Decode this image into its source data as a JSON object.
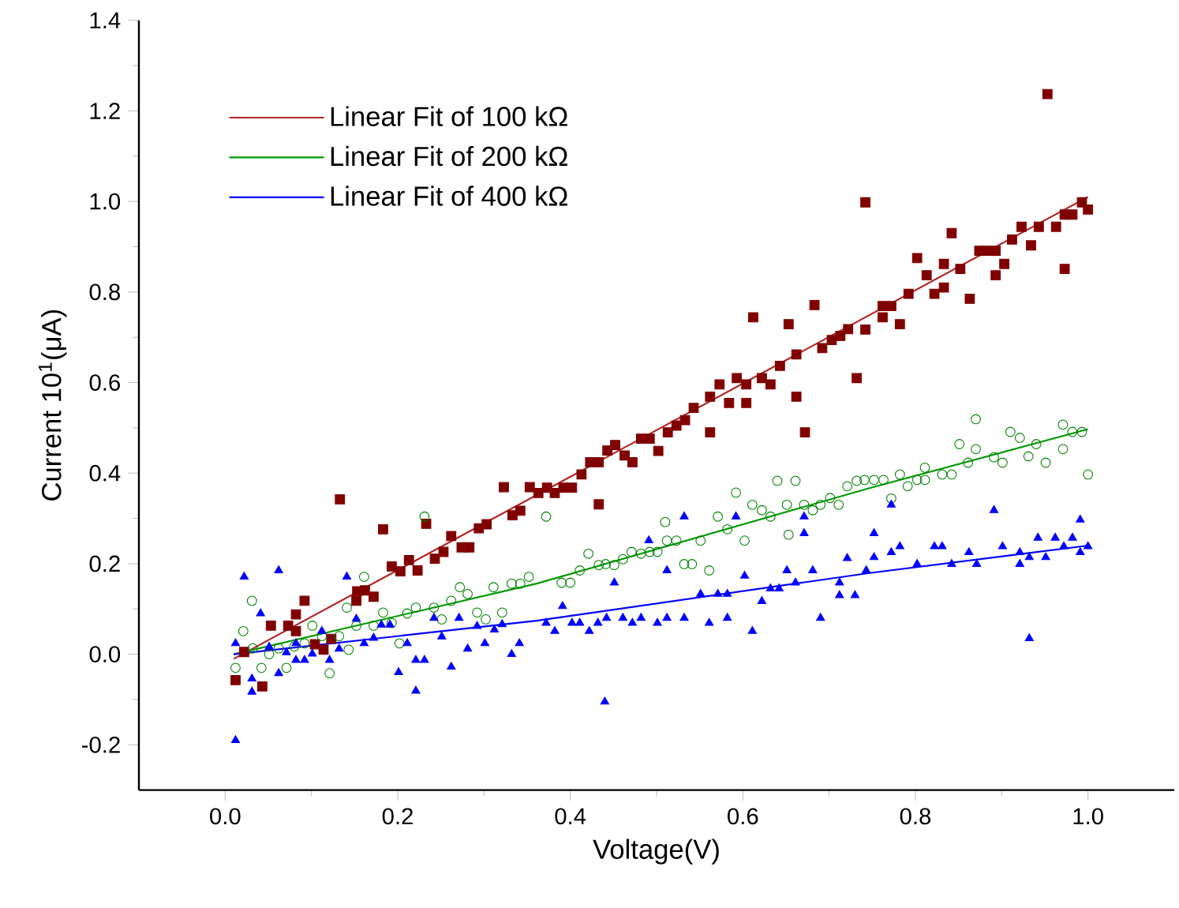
{
  "chart_data": {
    "type": "scatter",
    "xlabel": "Voltage(V)",
    "ylabel": "Current 10$^{1}$(μA)",
    "xlim": [
      -0.1,
      1.1
    ],
    "ylim": [
      -0.3,
      1.4
    ],
    "xticks": [
      {
        "value": 0,
        "label": "0.0"
      },
      0.2,
      0.4,
      0.6,
      0.8,
      {
        "value": 1,
        "label": "1.0"
      }
    ],
    "yticks": [
      -0.2,
      {
        "value": 0,
        "label": "0.0"
      },
      0.2,
      0.4,
      0.6,
      0.8,
      {
        "value": 1,
        "label": "1.0"
      },
      1.2,
      1.4
    ],
    "legend": "top left",
    "series": [
      {
        "marker": "square",
        "color": "#800000",
        "x": [
          0.012,
          0.022,
          0.043,
          0.053,
          0.073,
          0.082,
          0.082,
          0.092,
          0.104,
          0.114,
          0.123,
          0.133,
          0.152,
          0.153,
          0.162,
          0.172,
          0.183,
          0.193,
          0.203,
          0.213,
          0.223,
          0.233,
          0.243,
          0.253,
          0.262,
          0.274,
          0.283,
          0.294,
          0.303,
          0.323,
          0.333,
          0.342,
          0.353,
          0.363,
          0.373,
          0.382,
          0.392,
          0.402,
          0.413,
          0.423,
          0.433,
          0.433,
          0.443,
          0.452,
          0.463,
          0.472,
          0.482,
          0.492,
          0.502,
          0.513,
          0.523,
          0.533,
          0.543,
          0.562,
          0.562,
          0.573,
          0.584,
          0.593,
          0.604,
          0.604,
          0.612,
          0.622,
          0.632,
          0.643,
          0.653,
          0.662,
          0.662,
          0.672,
          0.683,
          0.692,
          0.703,
          0.713,
          0.722,
          0.732,
          0.742,
          0.742,
          0.762,
          0.762,
          0.772,
          0.782,
          0.792,
          0.802,
          0.813,
          0.822,
          0.833,
          0.833,
          0.842,
          0.852,
          0.863,
          0.874,
          0.883,
          0.893,
          0.893,
          0.903,
          0.912,
          0.923,
          0.934,
          0.943,
          0.953,
          0.963,
          0.973,
          0.973,
          0.982,
          0.993,
          1.0
        ],
        "values": [
          -0.057,
          0.005,
          -0.071,
          0.063,
          0.063,
          0.088,
          0.051,
          0.118,
          0.022,
          0.01,
          0.034,
          0.342,
          0.118,
          0.139,
          0.141,
          0.127,
          0.276,
          0.194,
          0.183,
          0.208,
          0.185,
          0.288,
          0.211,
          0.226,
          0.261,
          0.236,
          0.236,
          0.278,
          0.287,
          0.369,
          0.307,
          0.317,
          0.369,
          0.356,
          0.368,
          0.356,
          0.368,
          0.368,
          0.397,
          0.424,
          0.424,
          0.331,
          0.45,
          0.462,
          0.439,
          0.424,
          0.476,
          0.476,
          0.449,
          0.49,
          0.505,
          0.517,
          0.544,
          0.49,
          0.569,
          0.596,
          0.555,
          0.61,
          0.596,
          0.555,
          0.744,
          0.61,
          0.596,
          0.637,
          0.729,
          0.662,
          0.569,
          0.49,
          0.771,
          0.676,
          0.694,
          0.703,
          0.718,
          0.61,
          0.717,
          0.998,
          0.744,
          0.769,
          0.769,
          0.729,
          0.796,
          0.875,
          0.837,
          0.796,
          0.862,
          0.81,
          0.93,
          0.851,
          0.785,
          0.891,
          0.891,
          0.891,
          0.837,
          0.862,
          0.916,
          0.944,
          0.903,
          0.944,
          1.237,
          0.944,
          0.851,
          0.971,
          0.971,
          0.998,
          0.982
        ]
      },
      {
        "marker": "circle",
        "color": "#008000",
        "x": [
          0.012,
          0.021,
          0.031,
          0.032,
          0.042,
          0.051,
          0.062,
          0.071,
          0.08,
          0.092,
          0.101,
          0.112,
          0.121,
          0.132,
          0.141,
          0.143,
          0.152,
          0.161,
          0.172,
          0.183,
          0.193,
          0.202,
          0.211,
          0.221,
          0.231,
          0.242,
          0.251,
          0.262,
          0.272,
          0.281,
          0.292,
          0.302,
          0.311,
          0.321,
          0.332,
          0.342,
          0.352,
          0.372,
          0.39,
          0.4,
          0.411,
          0.421,
          0.433,
          0.441,
          0.451,
          0.461,
          0.471,
          0.482,
          0.492,
          0.501,
          0.51,
          0.512,
          0.523,
          0.532,
          0.541,
          0.551,
          0.561,
          0.571,
          0.582,
          0.592,
          0.602,
          0.611,
          0.622,
          0.632,
          0.64,
          0.651,
          0.653,
          0.661,
          0.671,
          0.681,
          0.69,
          0.701,
          0.711,
          0.721,
          0.732,
          0.741,
          0.752,
          0.763,
          0.772,
          0.782,
          0.791,
          0.802,
          0.811,
          0.811,
          0.831,
          0.842,
          0.851,
          0.861,
          0.87,
          0.87,
          0.891,
          0.901,
          0.91,
          0.921,
          0.931,
          0.94,
          0.951,
          0.971,
          0.971,
          0.982,
          0.993,
          1.0
        ],
        "values": [
          -0.03,
          0.051,
          0.118,
          0.013,
          -0.03,
          0.0,
          0.013,
          -0.03,
          0.017,
          0.024,
          0.063,
          0.04,
          -0.042,
          0.04,
          0.103,
          0.01,
          0.063,
          0.171,
          0.063,
          0.092,
          0.069,
          0.024,
          0.09,
          0.103,
          0.304,
          0.103,
          0.077,
          0.118,
          0.148,
          0.133,
          0.092,
          0.077,
          0.148,
          0.092,
          0.156,
          0.156,
          0.171,
          0.304,
          0.158,
          0.158,
          0.185,
          0.222,
          0.197,
          0.199,
          0.197,
          0.21,
          0.226,
          0.222,
          0.226,
          0.226,
          0.292,
          0.251,
          0.251,
          0.199,
          0.199,
          0.251,
          0.185,
          0.304,
          0.276,
          0.357,
          0.251,
          0.33,
          0.318,
          0.304,
          0.383,
          0.33,
          0.264,
          0.383,
          0.33,
          0.318,
          0.33,
          0.345,
          0.33,
          0.371,
          0.383,
          0.385,
          0.385,
          0.385,
          0.344,
          0.397,
          0.371,
          0.385,
          0.412,
          0.385,
          0.397,
          0.397,
          0.464,
          0.423,
          0.519,
          0.453,
          0.435,
          0.423,
          0.491,
          0.478,
          0.437,
          0.464,
          0.423,
          0.507,
          0.453,
          0.491,
          0.491,
          0.397
        ]
      },
      {
        "marker": "triangle",
        "color": "#0000ff",
        "x": [
          0.012,
          0.012,
          0.022,
          0.031,
          0.031,
          0.041,
          0.051,
          0.062,
          0.062,
          0.071,
          0.082,
          0.082,
          0.092,
          0.101,
          0.112,
          0.121,
          0.132,
          0.141,
          0.152,
          0.161,
          0.172,
          0.181,
          0.191,
          0.201,
          0.211,
          0.221,
          0.221,
          0.231,
          0.242,
          0.251,
          0.262,
          0.271,
          0.281,
          0.292,
          0.301,
          0.312,
          0.321,
          0.332,
          0.341,
          0.372,
          0.382,
          0.391,
          0.402,
          0.411,
          0.422,
          0.432,
          0.44,
          0.442,
          0.451,
          0.461,
          0.472,
          0.482,
          0.491,
          0.501,
          0.512,
          0.512,
          0.532,
          0.532,
          0.551,
          0.561,
          0.571,
          0.582,
          0.582,
          0.592,
          0.602,
          0.611,
          0.622,
          0.632,
          0.642,
          0.651,
          0.661,
          0.671,
          0.671,
          0.681,
          0.69,
          0.712,
          0.712,
          0.721,
          0.73,
          0.743,
          0.752,
          0.752,
          0.772,
          0.772,
          0.782,
          0.802,
          0.822,
          0.831,
          0.842,
          0.862,
          0.871,
          0.891,
          0.901,
          0.921,
          0.921,
          0.932,
          0.932,
          0.942,
          0.951,
          0.962,
          0.972,
          0.982,
          0.991,
          0.991,
          1.0
        ],
        "values": [
          -0.19,
          0.024,
          0.171,
          -0.054,
          -0.083,
          0.09,
          0.016,
          0.185,
          -0.042,
          0.004,
          0.024,
          -0.013,
          -0.013,
          0.001,
          0.051,
          -0.013,
          0.012,
          0.171,
          0.078,
          0.024,
          0.036,
          0.065,
          0.065,
          -0.04,
          0.024,
          -0.013,
          -0.081,
          -0.013,
          0.08,
          0.039,
          -0.028,
          0.08,
          0.012,
          0.062,
          0.024,
          0.054,
          0.066,
          0.0,
          0.024,
          0.069,
          0.051,
          0.106,
          0.069,
          0.069,
          0.051,
          0.069,
          -0.105,
          0.08,
          0.158,
          0.08,
          0.069,
          0.08,
          0.251,
          0.069,
          0.08,
          0.185,
          0.304,
          0.08,
          0.133,
          0.069,
          0.133,
          0.133,
          0.08,
          0.304,
          0.173,
          0.051,
          0.117,
          0.145,
          0.145,
          0.185,
          0.158,
          0.304,
          0.267,
          0.185,
          0.08,
          0.158,
          0.13,
          0.212,
          0.13,
          0.185,
          0.267,
          0.214,
          0.33,
          0.225,
          0.238,
          0.199,
          0.238,
          0.238,
          0.199,
          0.225,
          0.199,
          0.318,
          0.238,
          0.225,
          0.199,
          0.214,
          0.035,
          0.257,
          0.214,
          0.257,
          0.238,
          0.257,
          0.297,
          0.225,
          0.238
        ]
      },
      {
        "type": "line",
        "name": "Linear Fit of 100 kΩ",
        "marker": "none",
        "color": "#b22222",
        "x": [
          0.01,
          1.0
        ],
        "values": [
          -0.01,
          1.01
        ]
      },
      {
        "type": "line",
        "name": "Linear Fit of 200 kΩ",
        "marker": "none",
        "color": "#009900",
        "x": [
          0.01,
          0.361,
          0.745,
          1.0
        ],
        "values": [
          0.0,
          0.156,
          0.366,
          0.497
        ]
      },
      {
        "type": "line",
        "name": "Linear Fit of 400 kΩ",
        "marker": "none",
        "color": "#0000ff",
        "x": [
          0.01,
          0.361,
          0.745,
          1.0
        ],
        "values": [
          0.0,
          0.074,
          0.179,
          0.24
        ]
      }
    ]
  }
}
